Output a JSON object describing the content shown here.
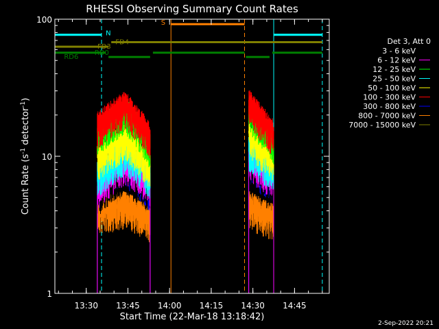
{
  "chart_data": {
    "type": "line",
    "title": "RHESSI Observing Summary Count Rates",
    "xlabel": "Start Time (22-Mar-18 13:18:42)",
    "ylabel_main": "Count Rate (s",
    "ylabel_sup1": "-1",
    "ylabel_mid": " detector",
    "ylabel_sup2": "-1",
    "ylabel_end": ")",
    "y_scale": "log",
    "ylim": [
      1,
      100
    ],
    "xlim": [
      "13:18:42",
      "14:57:30"
    ],
    "x_ticks": [
      "13:30",
      "13:45",
      "14:00",
      "14:15",
      "14:30",
      "14:45"
    ],
    "y_ticks": [
      "1",
      "10",
      "100"
    ],
    "legend_title": "Det 3, Att 0",
    "footer_date": "2-Sep-2022 20:21",
    "series": [
      {
        "name": "3 - 6 keV",
        "color": "#000000",
        "segments": [
          {
            "t": [
              "13:34:00",
              "13:44:00",
              "13:53:00"
            ],
            "v": [
              5.5,
              8.0,
              6.0
            ]
          },
          {
            "t": [
              "14:28:30",
              "14:33:00",
              "14:37:30"
            ],
            "v": [
              9.0,
              8.0,
              7.0
            ]
          }
        ]
      },
      {
        "name": "6 - 12 keV",
        "color": "#ff00ff",
        "segments": [
          {
            "t": [
              "13:34:00",
              "13:44:00",
              "13:53:00"
            ],
            "v": [
              6.0,
              9.5,
              6.5
            ]
          },
          {
            "t": [
              "14:28:30",
              "14:33:00",
              "14:37:30"
            ],
            "v": [
              10.0,
              8.5,
              7.5
            ]
          }
        ]
      },
      {
        "name": "12 - 25 keV",
        "color": "#00ff00",
        "segments": [
          {
            "t": [
              "13:34:00",
              "13:44:00",
              "13:53:00"
            ],
            "v": [
              15.0,
              22.0,
              12.0
            ]
          },
          {
            "t": [
              "14:28:30",
              "14:33:00",
              "14:37:30"
            ],
            "v": [
              23.0,
              17.0,
              13.0
            ]
          }
        ]
      },
      {
        "name": "25 - 50 keV",
        "color": "#00ffff",
        "segments": [
          {
            "t": [
              "13:34:00",
              "13:44:00",
              "13:53:00"
            ],
            "v": [
              7.5,
              11.0,
              7.5
            ]
          },
          {
            "t": [
              "14:28:30",
              "14:33:00",
              "14:37:30"
            ],
            "v": [
              12.0,
              9.5,
              8.5
            ]
          }
        ]
      },
      {
        "name": "50 - 100 keV",
        "color": "#ffff00",
        "segments": [
          {
            "t": [
              "13:34:00",
              "13:44:00",
              "13:53:00"
            ],
            "v": [
              10.0,
              14.0,
              8.5
            ]
          },
          {
            "t": [
              "14:28:30",
              "14:33:00",
              "14:37:30"
            ],
            "v": [
              15.0,
              12.0,
              10.0
            ]
          }
        ]
      },
      {
        "name": "100 - 300 keV",
        "color": "#ff0000",
        "segments": [
          {
            "t": [
              "13:34:00",
              "13:44:00",
              "13:53:00"
            ],
            "v": [
              17.0,
              24.0,
              14.0
            ]
          },
          {
            "t": [
              "14:28:30",
              "14:33:00",
              "14:37:30"
            ],
            "v": [
              25.0,
              19.0,
              15.0
            ]
          }
        ]
      },
      {
        "name": "300 - 800 keV",
        "color": "#0000ff",
        "segments": [
          {
            "t": [
              "13:34:00",
              "13:44:00",
              "13:53:00"
            ],
            "v": [
              7.0,
              9.0,
              6.0
            ]
          },
          {
            "t": [
              "14:28:30",
              "14:33:00",
              "14:37:30"
            ],
            "v": [
              9.5,
              8.0,
              7.0
            ]
          }
        ]
      },
      {
        "name": "800 - 7000 keV",
        "color": "#ff8000",
        "segments": [
          {
            "t": [
              "13:34:00",
              "13:44:00",
              "13:53:00"
            ],
            "v": [
              4.0,
              4.5,
              3.5
            ]
          },
          {
            "t": [
              "14:28:30",
              "14:33:00",
              "14:37:30"
            ],
            "v": [
              4.5,
              4.0,
              3.6
            ]
          }
        ]
      },
      {
        "name": "7000 - 15000 keV",
        "color": "#808000",
        "segments": []
      }
    ],
    "flag_bars": [
      {
        "label": "N",
        "color": "#00ffff",
        "segments": [
          [
            "13:18:42",
            "13:35:30"
          ],
          [
            "14:37:30",
            "14:55:00"
          ]
        ],
        "value": 77
      },
      {
        "label": "S",
        "color": "#ff8000",
        "segments": [
          [
            "14:00:30",
            "14:27:00"
          ]
        ],
        "value": 92
      },
      {
        "label": "FD3",
        "color": "#808000",
        "segments": [
          [
            "13:18:42",
            "13:38:00"
          ]
        ],
        "value": 63
      },
      {
        "label": "FD4",
        "color": "#808000",
        "segments": [
          [
            "13:39:00",
            "14:55:00"
          ]
        ],
        "value": 68
      },
      {
        "label": "RD0",
        "color": "#008000",
        "segments": [
          [
            "13:18:42",
            "13:37:00"
          ],
          [
            "13:54:00",
            "14:27:00"
          ],
          [
            "14:37:00",
            "14:55:00"
          ]
        ],
        "value": 57
      },
      {
        "label": "RD6",
        "color": "#008000",
        "segments": [
          [
            "13:38:00",
            "13:53:00"
          ],
          [
            "14:27:30",
            "14:36:00"
          ]
        ],
        "value": 53
      }
    ],
    "vertical_markers": [
      {
        "t": "13:35:30",
        "color": "#00ffff",
        "style": "dashed"
      },
      {
        "t": "14:00:30",
        "color": "#ff8000",
        "style": "solid"
      },
      {
        "t": "14:27:00",
        "color": "#ff8000",
        "style": "dashed"
      },
      {
        "t": "14:37:30",
        "color": "#00ffff",
        "style": "solid"
      },
      {
        "t": "14:55:00",
        "color": "#00ffff",
        "style": "dashed"
      },
      {
        "t": "13:18:42",
        "color": "#00ffff",
        "style": "solid"
      }
    ]
  }
}
